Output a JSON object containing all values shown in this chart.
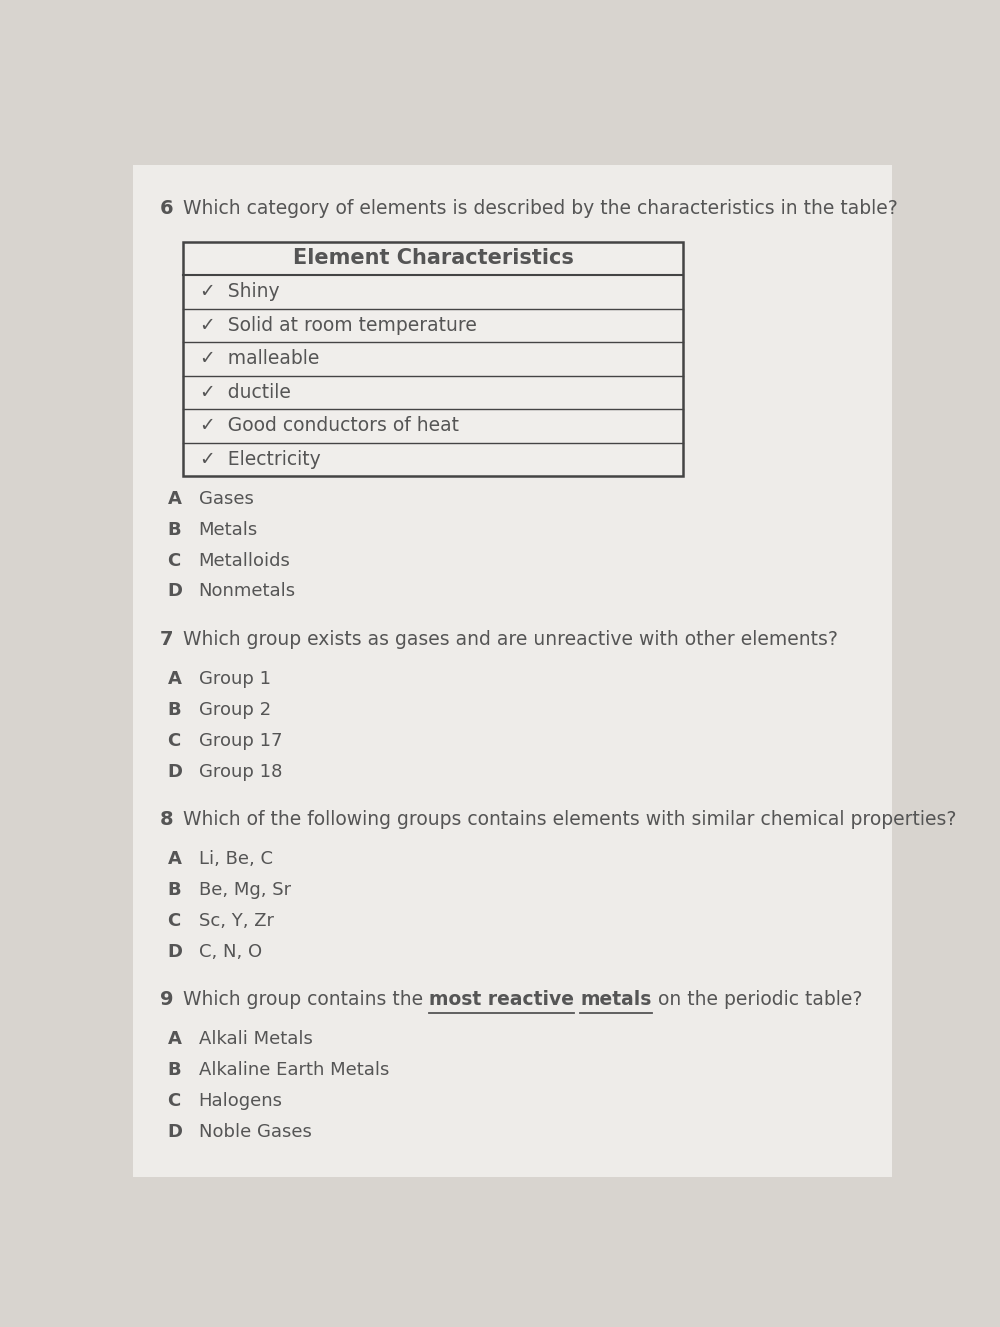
{
  "bg_color": "#d8d4cf",
  "paper_color": "#eeece9",
  "text_color": "#555555",
  "q6_number": "6",
  "q6_text": "Which category of elements is described by the characteristics in the table?",
  "table_title": "Element Characteristics",
  "table_rows": [
    "✓  Shiny",
    "✓  Solid at room temperature",
    "✓  malleable",
    "✓  ductile",
    "✓  Good conductors of heat",
    "✓  Electricity"
  ],
  "q6_options": [
    [
      "A",
      "Gases"
    ],
    [
      "B",
      "Metals"
    ],
    [
      "C",
      "Metalloids"
    ],
    [
      "D",
      "Nonmetals"
    ]
  ],
  "q7_number": "7",
  "q7_text": "Which group exists as gases and are unreactive with other elements?",
  "q7_options": [
    [
      "A",
      "Group 1"
    ],
    [
      "B",
      "Group 2"
    ],
    [
      "C",
      "Group 17"
    ],
    [
      "D",
      "Group 18"
    ]
  ],
  "q8_number": "8",
  "q8_text": "Which of the following groups contains elements with similar chemical properties?",
  "q8_options": [
    [
      "A",
      "Li, Be, C"
    ],
    [
      "B",
      "Be, Mg, Sr"
    ],
    [
      "C",
      "Sc, Y, Zr"
    ],
    [
      "D",
      "C, N, O"
    ]
  ],
  "q9_number": "9",
  "q9_text_plain": "Which group contains the ",
  "q9_text_bold1": "most reactive",
  "q9_text_bold2": "metals",
  "q9_text_end": " on the periodic table?",
  "q9_options": [
    [
      "A",
      "Alkali Metals"
    ],
    [
      "B",
      "Alkaline Earth Metals"
    ],
    [
      "C",
      "Halogens"
    ],
    [
      "D",
      "Noble Gases"
    ]
  ]
}
